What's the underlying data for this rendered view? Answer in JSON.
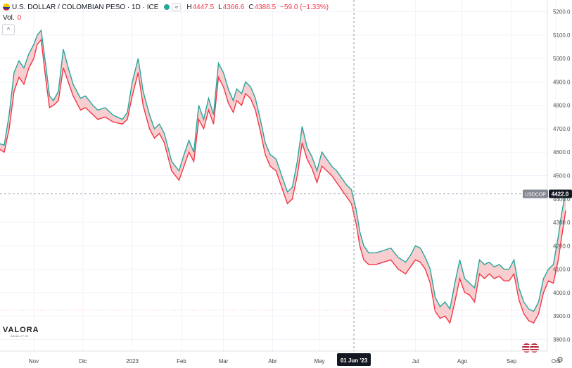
{
  "header": {
    "title": "U.S. DOLLAR / COLOMBIAN PESO · 1D · ICE",
    "compare_label": "≈",
    "high_label": "H",
    "high": "4447.5",
    "low_label": "L",
    "low": "4366.6",
    "close_label": "C",
    "close": "4388.5",
    "change": "−59.0 (−1.33%)"
  },
  "volume": {
    "label": "Vol.",
    "value": "0"
  },
  "collapse_label": "^",
  "watermark": {
    "name": "VALORA",
    "sub": "ANALITIK"
  },
  "settings_label": "⚙",
  "colors": {
    "high_line": "#26a69a",
    "low_line": "#f23645",
    "fill": "#f7c5c8",
    "grid": "#f0f3fa"
  },
  "chart_data": {
    "type": "area",
    "title": "U.S. DOLLAR / COLOMBIAN PESO · 1D · ICE",
    "symbol_label": "USDCOP",
    "last_price_label": "4422.0",
    "last_price": 4422.0,
    "crosshair_price": 4422,
    "crosshair_date_label": "01 Jun '23",
    "crosshair_month": 7.0,
    "ylim": [
      3750,
      5250
    ],
    "y_ticks": [
      3800,
      3900,
      4000,
      4100,
      4200,
      4300,
      4400,
      4500,
      4600,
      4700,
      4800,
      4900,
      5000,
      5100,
      5200
    ],
    "y_tick_labels": [
      "3800.0",
      "3900.0",
      "4000.0",
      "4100.0",
      "4200.0",
      "4300.0",
      "4400.0",
      "4500.0",
      "4600.0",
      "4700.0",
      "4800.0",
      "4900.0",
      "5000.0",
      "5100.0",
      "5200.0"
    ],
    "x_ticks": [
      {
        "label": "Nov",
        "m": 0.5
      },
      {
        "label": "Dic",
        "m": 1.5
      },
      {
        "label": "2023",
        "m": 2.5
      },
      {
        "label": "Feb",
        "m": 3.5
      },
      {
        "label": "Mar",
        "m": 4.35
      },
      {
        "label": "Abr",
        "m": 5.35
      },
      {
        "label": "May",
        "m": 6.3
      },
      {
        "label": "Jul",
        "m": 8.25
      },
      {
        "label": "Ago",
        "m": 9.2
      },
      {
        "label": "Sep",
        "m": 10.2
      },
      {
        "label": "Oct",
        "m": 11.1
      }
    ],
    "x_range": [
      0,
      11.5
    ],
    "series": [
      {
        "name": "high",
        "points": [
          [
            -0.25,
            4640
          ],
          [
            -0.1,
            4630
          ],
          [
            0.0,
            4760
          ],
          [
            0.1,
            4940
          ],
          [
            0.2,
            4990
          ],
          [
            0.3,
            4960
          ],
          [
            0.4,
            5020
          ],
          [
            0.5,
            5060
          ],
          [
            0.57,
            5100
          ],
          [
            0.65,
            5120
          ],
          [
            0.75,
            4960
          ],
          [
            0.82,
            4840
          ],
          [
            0.9,
            4820
          ],
          [
            1.0,
            4860
          ],
          [
            1.1,
            5040
          ],
          [
            1.2,
            4960
          ],
          [
            1.3,
            4890
          ],
          [
            1.45,
            4830
          ],
          [
            1.55,
            4840
          ],
          [
            1.7,
            4800
          ],
          [
            1.8,
            4780
          ],
          [
            1.95,
            4790
          ],
          [
            2.1,
            4760
          ],
          [
            2.3,
            4740
          ],
          [
            2.4,
            4770
          ],
          [
            2.5,
            4900
          ],
          [
            2.62,
            5000
          ],
          [
            2.72,
            4860
          ],
          [
            2.85,
            4760
          ],
          [
            2.95,
            4700
          ],
          [
            3.05,
            4720
          ],
          [
            3.15,
            4680
          ],
          [
            3.3,
            4560
          ],
          [
            3.45,
            4520
          ],
          [
            3.55,
            4590
          ],
          [
            3.65,
            4650
          ],
          [
            3.75,
            4600
          ],
          [
            3.85,
            4800
          ],
          [
            3.95,
            4740
          ],
          [
            4.05,
            4830
          ],
          [
            4.15,
            4760
          ],
          [
            4.25,
            4980
          ],
          [
            4.35,
            4940
          ],
          [
            4.45,
            4870
          ],
          [
            4.55,
            4820
          ],
          [
            4.62,
            4870
          ],
          [
            4.72,
            4850
          ],
          [
            4.8,
            4900
          ],
          [
            4.9,
            4880
          ],
          [
            5.0,
            4830
          ],
          [
            5.1,
            4740
          ],
          [
            5.2,
            4640
          ],
          [
            5.3,
            4590
          ],
          [
            5.42,
            4570
          ],
          [
            5.55,
            4490
          ],
          [
            5.65,
            4430
          ],
          [
            5.75,
            4450
          ],
          [
            5.85,
            4560
          ],
          [
            5.95,
            4710
          ],
          [
            6.05,
            4620
          ],
          [
            6.15,
            4580
          ],
          [
            6.25,
            4520
          ],
          [
            6.35,
            4600
          ],
          [
            6.45,
            4570
          ],
          [
            6.55,
            4540
          ],
          [
            6.65,
            4520
          ],
          [
            6.75,
            4490
          ],
          [
            6.85,
            4460
          ],
          [
            6.95,
            4440
          ],
          [
            7.05,
            4350
          ],
          [
            7.12,
            4260
          ],
          [
            7.2,
            4200
          ],
          [
            7.3,
            4170
          ],
          [
            7.45,
            4170
          ],
          [
            7.6,
            4180
          ],
          [
            7.75,
            4190
          ],
          [
            7.9,
            4150
          ],
          [
            8.05,
            4130
          ],
          [
            8.15,
            4160
          ],
          [
            8.25,
            4200
          ],
          [
            8.35,
            4190
          ],
          [
            8.45,
            4150
          ],
          [
            8.55,
            4100
          ],
          [
            8.65,
            3980
          ],
          [
            8.75,
            3940
          ],
          [
            8.85,
            3960
          ],
          [
            8.95,
            3930
          ],
          [
            9.05,
            4040
          ],
          [
            9.15,
            4140
          ],
          [
            9.25,
            4060
          ],
          [
            9.35,
            4040
          ],
          [
            9.45,
            4020
          ],
          [
            9.55,
            4140
          ],
          [
            9.65,
            4120
          ],
          [
            9.75,
            4130
          ],
          [
            9.85,
            4110
          ],
          [
            9.95,
            4120
          ],
          [
            10.05,
            4100
          ],
          [
            10.15,
            4100
          ],
          [
            10.25,
            4140
          ],
          [
            10.35,
            4020
          ],
          [
            10.45,
            3960
          ],
          [
            10.55,
            3930
          ],
          [
            10.65,
            3920
          ],
          [
            10.75,
            3960
          ],
          [
            10.85,
            4060
          ],
          [
            10.95,
            4100
          ],
          [
            11.05,
            4120
          ],
          [
            11.15,
            4240
          ],
          [
            11.22,
            4340
          ],
          [
            11.3,
            4430
          ]
        ]
      },
      {
        "name": "low",
        "points": [
          [
            -0.25,
            4620
          ],
          [
            -0.1,
            4600
          ],
          [
            0.0,
            4700
          ],
          [
            0.1,
            4860
          ],
          [
            0.2,
            4920
          ],
          [
            0.3,
            4890
          ],
          [
            0.4,
            4960
          ],
          [
            0.5,
            5000
          ],
          [
            0.57,
            5060
          ],
          [
            0.65,
            5080
          ],
          [
            0.75,
            4900
          ],
          [
            0.82,
            4790
          ],
          [
            0.9,
            4800
          ],
          [
            1.0,
            4820
          ],
          [
            1.1,
            4960
          ],
          [
            1.2,
            4900
          ],
          [
            1.3,
            4840
          ],
          [
            1.45,
            4780
          ],
          [
            1.55,
            4790
          ],
          [
            1.7,
            4760
          ],
          [
            1.8,
            4740
          ],
          [
            1.95,
            4750
          ],
          [
            2.1,
            4730
          ],
          [
            2.3,
            4720
          ],
          [
            2.4,
            4740
          ],
          [
            2.5,
            4840
          ],
          [
            2.62,
            4940
          ],
          [
            2.72,
            4800
          ],
          [
            2.85,
            4700
          ],
          [
            2.95,
            4660
          ],
          [
            3.05,
            4680
          ],
          [
            3.15,
            4640
          ],
          [
            3.3,
            4520
          ],
          [
            3.45,
            4480
          ],
          [
            3.55,
            4540
          ],
          [
            3.65,
            4600
          ],
          [
            3.75,
            4560
          ],
          [
            3.85,
            4740
          ],
          [
            3.95,
            4700
          ],
          [
            4.05,
            4780
          ],
          [
            4.15,
            4720
          ],
          [
            4.25,
            4920
          ],
          [
            4.35,
            4880
          ],
          [
            4.45,
            4810
          ],
          [
            4.55,
            4770
          ],
          [
            4.62,
            4820
          ],
          [
            4.72,
            4800
          ],
          [
            4.8,
            4850
          ],
          [
            4.9,
            4830
          ],
          [
            5.0,
            4780
          ],
          [
            5.1,
            4690
          ],
          [
            5.2,
            4590
          ],
          [
            5.3,
            4540
          ],
          [
            5.42,
            4520
          ],
          [
            5.55,
            4440
          ],
          [
            5.65,
            4380
          ],
          [
            5.75,
            4400
          ],
          [
            5.85,
            4500
          ],
          [
            5.95,
            4640
          ],
          [
            6.05,
            4570
          ],
          [
            6.15,
            4530
          ],
          [
            6.25,
            4470
          ],
          [
            6.35,
            4540
          ],
          [
            6.45,
            4520
          ],
          [
            6.55,
            4500
          ],
          [
            6.65,
            4470
          ],
          [
            6.75,
            4440
          ],
          [
            6.85,
            4410
          ],
          [
            6.95,
            4380
          ],
          [
            7.05,
            4290
          ],
          [
            7.12,
            4200
          ],
          [
            7.2,
            4140
          ],
          [
            7.3,
            4120
          ],
          [
            7.45,
            4120
          ],
          [
            7.6,
            4130
          ],
          [
            7.75,
            4140
          ],
          [
            7.9,
            4100
          ],
          [
            8.05,
            4080
          ],
          [
            8.15,
            4110
          ],
          [
            8.25,
            4140
          ],
          [
            8.35,
            4130
          ],
          [
            8.45,
            4100
          ],
          [
            8.55,
            4040
          ],
          [
            8.65,
            3920
          ],
          [
            8.75,
            3890
          ],
          [
            8.85,
            3900
          ],
          [
            8.95,
            3870
          ],
          [
            9.05,
            3960
          ],
          [
            9.15,
            4060
          ],
          [
            9.25,
            4000
          ],
          [
            9.35,
            3990
          ],
          [
            9.45,
            3960
          ],
          [
            9.55,
            4080
          ],
          [
            9.65,
            4060
          ],
          [
            9.75,
            4080
          ],
          [
            9.85,
            4060
          ],
          [
            9.95,
            4070
          ],
          [
            10.05,
            4050
          ],
          [
            10.15,
            4050
          ],
          [
            10.25,
            4080
          ],
          [
            10.35,
            3970
          ],
          [
            10.45,
            3910
          ],
          [
            10.55,
            3880
          ],
          [
            10.65,
            3870
          ],
          [
            10.75,
            3910
          ],
          [
            10.85,
            4000
          ],
          [
            10.95,
            4050
          ],
          [
            11.05,
            4040
          ],
          [
            11.15,
            4140
          ],
          [
            11.22,
            4240
          ],
          [
            11.3,
            4350
          ]
        ]
      }
    ]
  }
}
